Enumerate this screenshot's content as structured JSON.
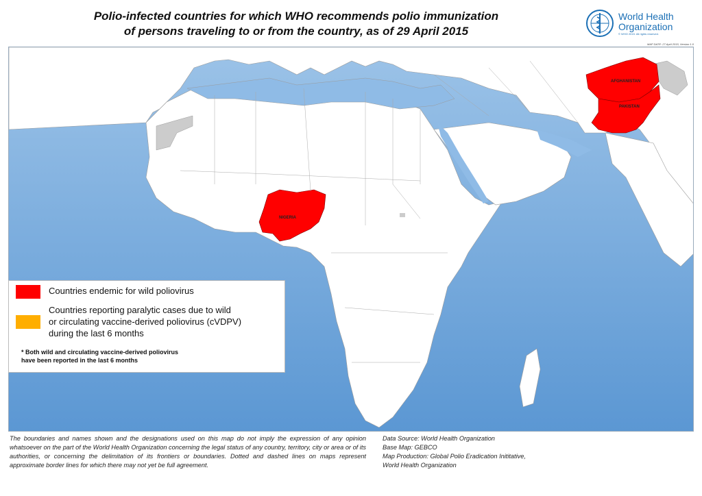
{
  "title": {
    "line1": "Polio-infected countries for which WHO recommends polio immunization",
    "line2": "of persons traveling to or from the country, as of 29 April 2015"
  },
  "logo": {
    "name_line1": "World Health",
    "name_line2": "Organization",
    "icon": "who-emblem-icon",
    "small_text": "© WHO 2015. All rights reserved."
  },
  "map_date": "MAP DATE: 27 April 2015, Version 1.0",
  "country_labels": {
    "afghanistan": "AFGHANISTAN",
    "pakistan": "PAKISTAN",
    "nigeria": "NIGERIA"
  },
  "legend": {
    "endemic_label": "Countries endemic for wild poliovirus",
    "endemic_color": "#ff0000",
    "cvdpv_label_line1": "Countries reporting paralytic cases due to wild",
    "cvdpv_label_line2": "or circulating vaccine-derived poliovirus (cVDPV)",
    "cvdpv_label_line3": "during the last 6 months",
    "cvdpv_color": "#ffae00",
    "note": "* Both wild and circulating vaccine-derived poliovirus\n   have been reported in the last 6 months"
  },
  "colors": {
    "ocean": "#6fa8dc",
    "land": "#ffffff",
    "no_data": "#cccccc",
    "border": "#999999"
  },
  "footer": {
    "disclaimer": "The boundaries and names shown and the designations used on this map do not imply the expression of any opinion whatsoever on the part of the World Health Organization concerning the legal status of any country, territory, city or area or of its authorities, or concerning the delimitation of its frontiers or boundaries. Dotted and dashed lines on maps represent approximate border lines for which there may not yet be full agreement.",
    "data_source": "Data Source: World Health Organization",
    "base_map": "Base Map: GEBCO",
    "production_line1": "Map Production: Global Polio Eradication Inititative,",
    "production_line2": "World Health Organization"
  }
}
